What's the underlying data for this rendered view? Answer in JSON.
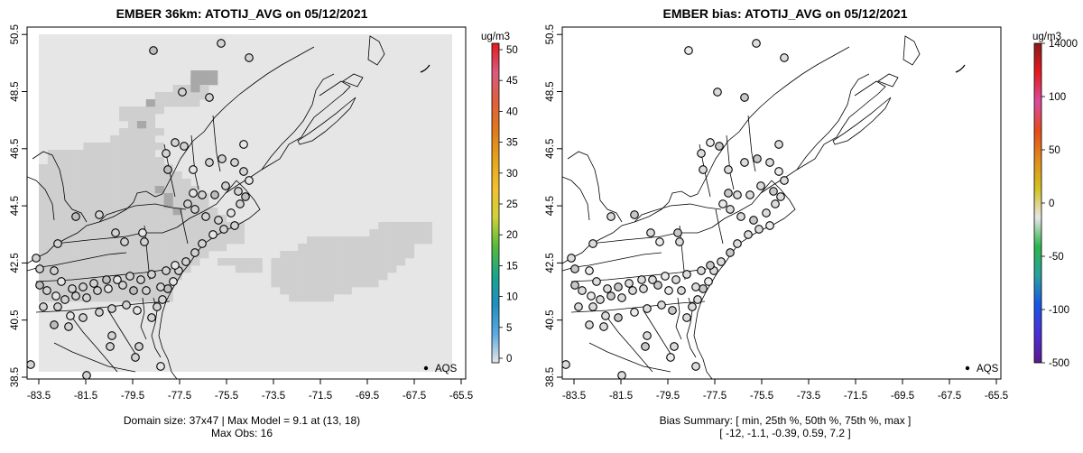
{
  "panels": {
    "left": {
      "title": "EMBER 36km: ATOTIJ_AVG on 05/12/2021",
      "caption_line1": "Domain size: 37x47 | Max Model = 9.1 at (13, 18)",
      "caption_line2": "Max Obs: 16",
      "colorbar_unit": "ug/m3",
      "colorbar_ticks": [
        "50",
        "45",
        "40",
        "35",
        "30",
        "25",
        "20",
        "15",
        "10",
        "5",
        "0"
      ],
      "legend_label": "AQS"
    },
    "right": {
      "title": "EMBER bias: ATOTIJ_AVG on 05/12/2021",
      "caption_line1": "Bias Summary: [ min, 25th %, 50th %, 75th %, max ]",
      "caption_line2": "[ -12,   -1.1,   -0.39,   0.59,   7.2 ]",
      "colorbar_unit": "ug/m3",
      "colorbar_ticks": [
        "14000",
        "100",
        "50",
        "0",
        "-50",
        "-100",
        "-500"
      ],
      "legend_label": "AQS"
    }
  },
  "x_ticks": [
    "-83.5",
    "-81.5",
    "-79.5",
    "-77.5",
    "-75.5",
    "-73.5",
    "-71.5",
    "-69.5",
    "-67.5",
    "-65.5"
  ],
  "y_ticks": [
    "38.5",
    "40.5",
    "42.5",
    "44.5",
    "46.5",
    "48.5",
    "50.5"
  ],
  "colors": {
    "model_cell_light": "#e6e6e6",
    "model_cell_mid": "#cfcfcf",
    "model_cell_dark": "#a8a8a8",
    "obs_fill": "#d3d3d3",
    "coast": "#000000"
  },
  "colorbar_left_stops": [
    "#e6e6e6",
    "#5aa9e3",
    "#1f8fbf",
    "#1aa58c",
    "#55bb3a",
    "#cfd23a",
    "#f2c12e",
    "#e6a41e",
    "#e07a1a",
    "#e0603c",
    "#d95b7f",
    "#e61a1a"
  ],
  "colorbar_right_stops": [
    "#5b1a8c",
    "#4b2fd6",
    "#1a55e6",
    "#2aa0a0",
    "#2bb54b",
    "#e6e6e6",
    "#d4c21e",
    "#e08c1a",
    "#e64a1a",
    "#d94aa0",
    "#e61a1a",
    "#8b1a1a"
  ]
}
